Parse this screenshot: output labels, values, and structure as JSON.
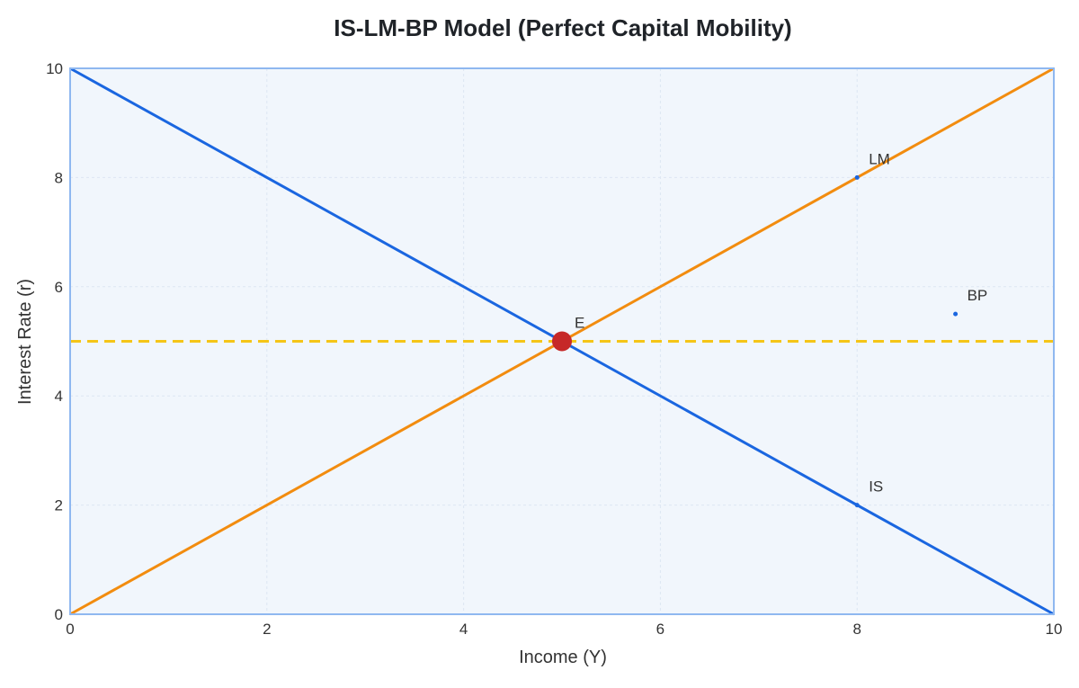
{
  "chart_data": {
    "type": "line",
    "title": "IS-LM-BP Model (Perfect Capital Mobility)",
    "xlabel": "Income (Y)",
    "ylabel": "Interest Rate (r)",
    "xlim": [
      0,
      10
    ],
    "ylim": [
      0,
      10
    ],
    "x_ticks": [
      0,
      2,
      4,
      6,
      8,
      10
    ],
    "y_ticks": [
      0,
      2,
      4,
      6,
      8,
      10
    ],
    "grid": true,
    "series": [
      {
        "name": "IS",
        "x": [
          0,
          10
        ],
        "y": [
          10,
          0
        ],
        "color": "#1a66e0",
        "style": "solid"
      },
      {
        "name": "LM",
        "x": [
          0,
          10
        ],
        "y": [
          0,
          10
        ],
        "color": "#f28c0f",
        "style": "solid"
      },
      {
        "name": "BP",
        "x": [
          0,
          10
        ],
        "y": [
          5,
          5
        ],
        "color": "#f5c518",
        "style": "dashed"
      }
    ],
    "annotations": [
      {
        "text": "IS",
        "x": 8,
        "y": 2,
        "marker_color": "#1a66e0"
      },
      {
        "text": "LM",
        "x": 8,
        "y": 8,
        "marker_color": "#1a66e0"
      },
      {
        "text": "BP",
        "x": 9,
        "y": 5.5,
        "marker_color": "#1a66e0"
      },
      {
        "text": "E",
        "x": 5,
        "y": 5,
        "marker_color": "#c62828",
        "equilibrium": true
      }
    ],
    "colors": {
      "plot_background": "#f1f6fc",
      "plot_border": "#8fb8f0",
      "grid": "#dde6f2"
    }
  }
}
